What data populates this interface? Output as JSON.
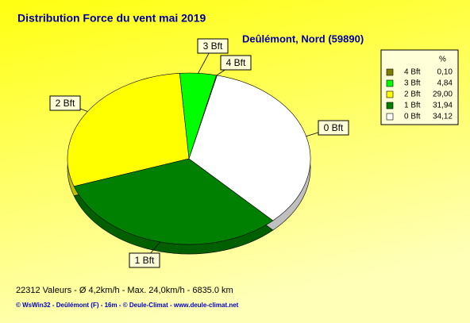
{
  "chart_data": {
    "type": "pie",
    "title": "Distribution Force du vent  mai 2019",
    "subtitle": "Deûlémont, Nord (59890)",
    "legend_header": "%",
    "categories": [
      "4 Bft",
      "3 Bft",
      "2 Bft",
      "1 Bft",
      "0 Bft"
    ],
    "values": [
      0.1,
      4.84,
      29.0,
      31.94,
      34.12
    ],
    "value_labels": [
      "0,10",
      "4,84",
      "29,00",
      "31,94",
      "34,12"
    ],
    "colors": [
      "#808000",
      "#00ff00",
      "#ffff00",
      "#008000",
      "#ffffff"
    ],
    "footer": "22312 Valeurs   -   Ø 4,2km/h  -  Max. 24,0km/h   -   6835.0 km",
    "credit": "© WsWin32  -  Deûlémont (F) - 16m  -  © Deule-Climat - www.deule-climat.net"
  }
}
